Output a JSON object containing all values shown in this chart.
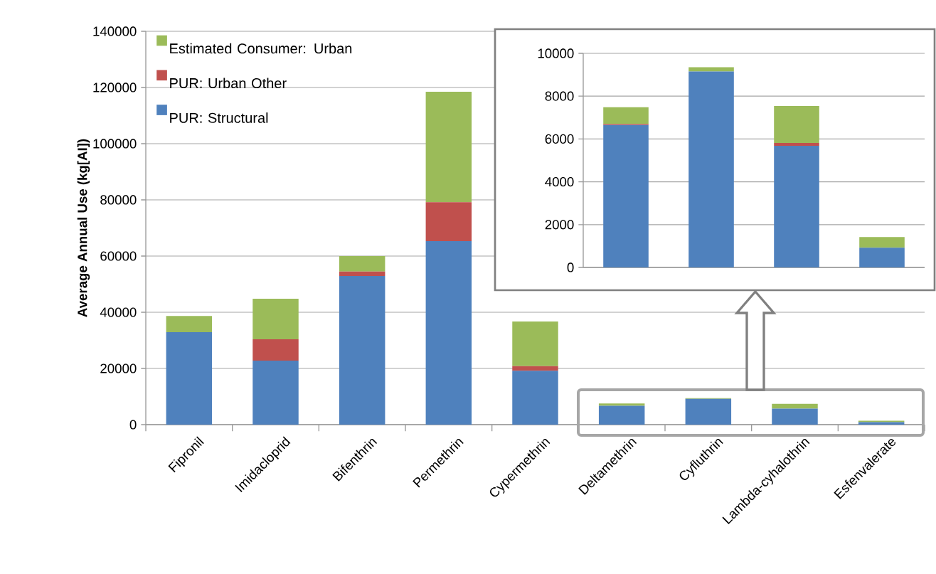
{
  "chart_data": [
    {
      "type": "bar",
      "stacked": true,
      "ylabel": "Average Annual Use (kg[AI])",
      "categories": [
        "Fipronil",
        "Imidacloprid",
        "Bifenthrin",
        "Permethrin",
        "Cypermethrin",
        "Deltamethrin",
        "Cyfluthrin",
        "Lambda-cyhalothrin",
        "Esfenvalerate"
      ],
      "series": [
        {
          "name": "PUR: Structural",
          "color": "#4f81bd",
          "values": [
            32900,
            22800,
            52900,
            65300,
            19200,
            6700,
            9200,
            5700,
            900
          ]
        },
        {
          "name": "PUR: Urban Other",
          "color": "#c0504d",
          "values": [
            0,
            7600,
            1600,
            13900,
            1600,
            null,
            0,
            null,
            0
          ]
        },
        {
          "name": "Estimated Consumer: Urban",
          "color": "#9bbb59",
          "values": [
            5800,
            14400,
            5500,
            39300,
            15900,
            800,
            200,
            1700,
            500
          ]
        }
      ],
      "ylim": [
        0,
        140000
      ],
      "yticks": [
        0,
        20000,
        40000,
        60000,
        80000,
        100000,
        120000,
        140000
      ],
      "grid": "y",
      "legend": "top left"
    },
    {
      "type": "bar",
      "stacked": true,
      "categories": [
        null,
        null,
        null,
        null
      ],
      "series": [
        {
          "color": "#4f81bd",
          "values": [
            6650,
            9150,
            5680,
            920
          ]
        },
        {
          "color": "#c0504d",
          "values": [
            50,
            0,
            130,
            0
          ]
        },
        {
          "color": "#9bbb59",
          "values": [
            780,
            200,
            1730,
            500
          ]
        }
      ],
      "ylim": [
        0,
        10000
      ],
      "yticks": [
        0,
        2000,
        4000,
        6000,
        8000,
        10000
      ],
      "grid": "y",
      "tick_labels": "y"
    }
  ]
}
